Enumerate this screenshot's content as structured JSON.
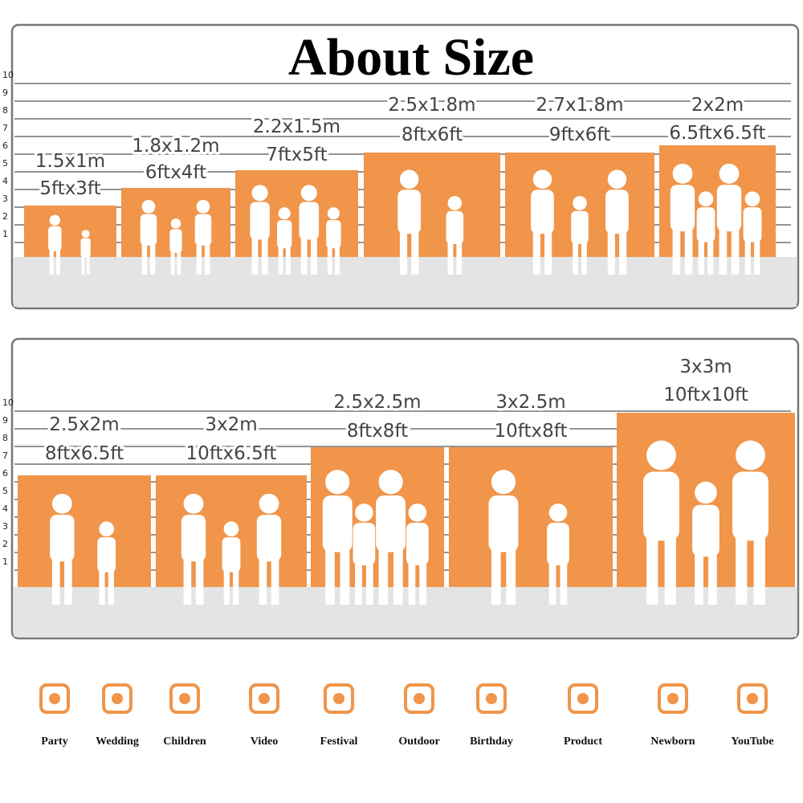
{
  "title": "About Size",
  "scale": [
    1,
    2,
    3,
    4,
    5,
    6,
    7,
    8,
    9,
    10
  ],
  "panels": [
    {
      "items": [
        {
          "metric": "1.5x1m",
          "imperial": "5ftx3ft"
        },
        {
          "metric": "1.8x1.2m",
          "imperial": "6ftx4ft"
        },
        {
          "metric": "2.2x1.5m",
          "imperial": "7ftx5ft"
        },
        {
          "metric": "2.5x1.8m",
          "imperial": "8ftx6ft"
        },
        {
          "metric": "2.7x1.8m",
          "imperial": "9ftx6ft"
        },
        {
          "metric": "2x2m",
          "imperial": "6.5ftx6.5ft"
        }
      ]
    },
    {
      "items": [
        {
          "metric": "2.5x2m",
          "imperial": "8ftx6.5ft"
        },
        {
          "metric": "3x2m",
          "imperial": "10ftx6.5ft"
        },
        {
          "metric": "2.5x2.5m",
          "imperial": "8ftx8ft"
        },
        {
          "metric": "3x2.5m",
          "imperial": "10ftx8ft"
        },
        {
          "metric": "3x3m",
          "imperial": "10ftx10ft"
        }
      ]
    }
  ],
  "icons": [
    {
      "label": "Party"
    },
    {
      "label": "Wedding"
    },
    {
      "label": "Children"
    },
    {
      "label": "Video"
    },
    {
      "label": "Festival"
    },
    {
      "label": "Outdoor"
    },
    {
      "label": "Birthday"
    },
    {
      "label": "Product"
    },
    {
      "label": "Newborn"
    },
    {
      "label": "YouTube"
    }
  ]
}
